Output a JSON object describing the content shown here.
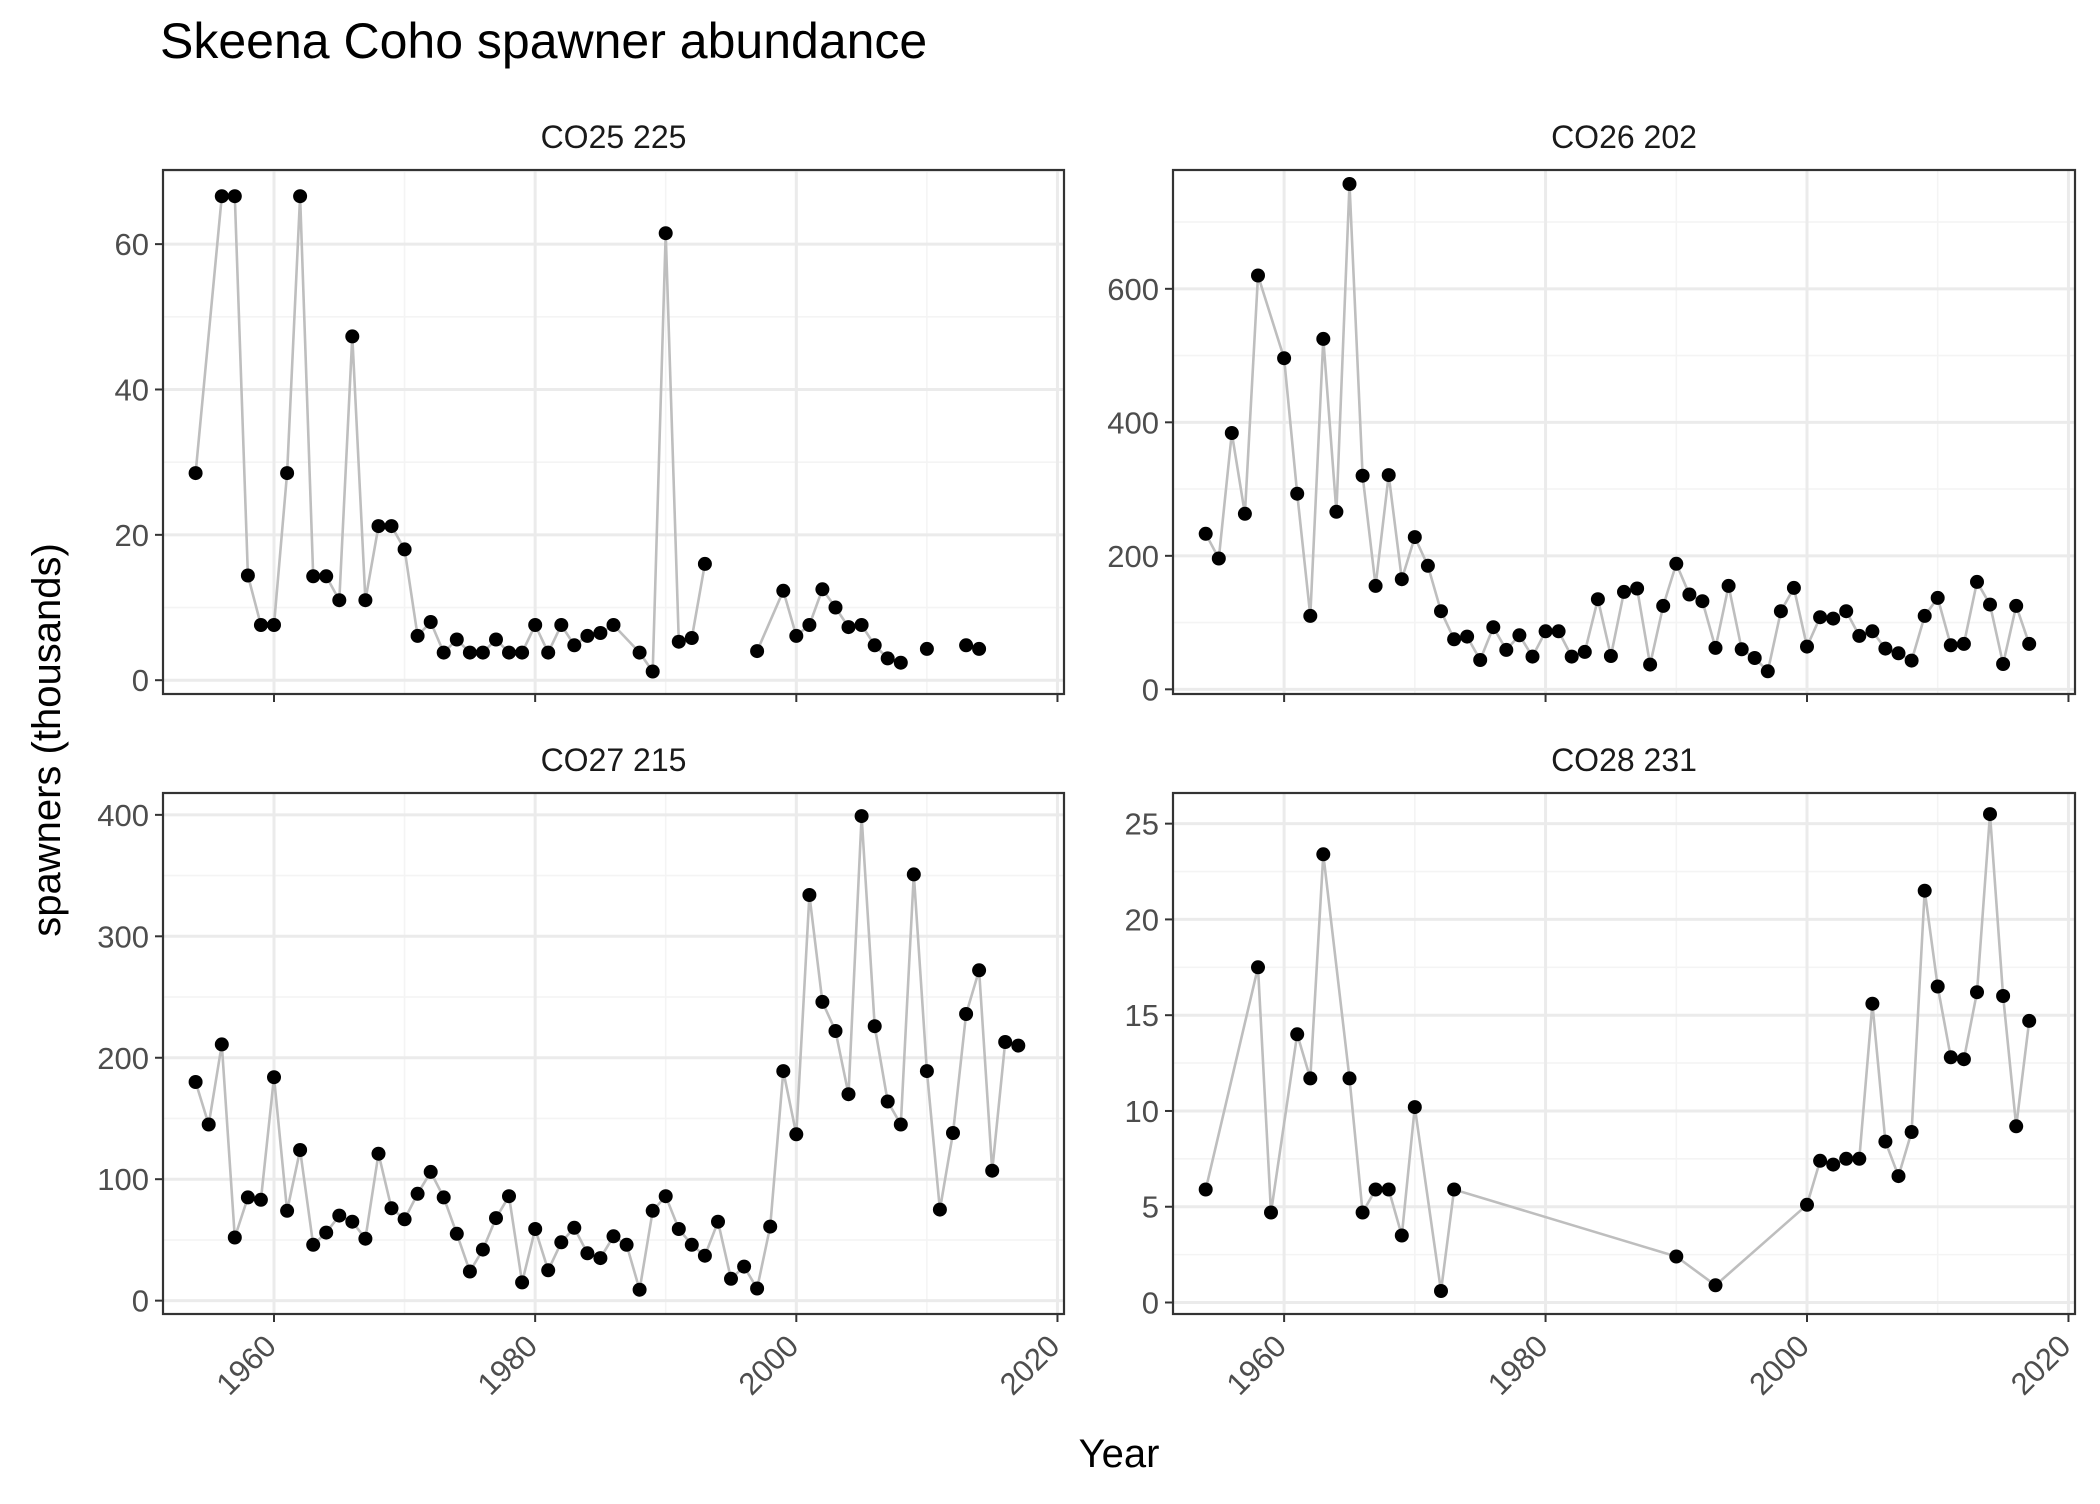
{
  "title": "Skeena Coho spawner abundance",
  "xlabel": "Year",
  "ylabel": "spawners (thousands)",
  "colors": {
    "line": "#bebebe",
    "point": "#000000",
    "grid_major": "#ebebeb",
    "grid_minor": "#f4f4f4",
    "panel_border": "#333333",
    "tick_text": "#4d4d4d",
    "text": "#1a1a1a"
  },
  "chart_data": [
    {
      "type": "line",
      "panel_title": "CO25 225",
      "xlim": [
        1951.5,
        2020.5
      ],
      "ylim": [
        -1.9,
        70.2
      ],
      "x_ticks": [
        1960,
        1980,
        2000,
        2020
      ],
      "y_ticks": [
        0,
        20,
        40,
        60
      ],
      "grid": true,
      "segments": [
        [
          {
            "x": 1954,
            "y": 28.5
          },
          {
            "x": 1956,
            "y": 66.6
          },
          {
            "x": 1957,
            "y": 66.6
          },
          {
            "x": 1958,
            "y": 14.4
          },
          {
            "x": 1959,
            "y": 7.6
          },
          {
            "x": 1960,
            "y": 7.6
          },
          {
            "x": 1961,
            "y": 28.5
          },
          {
            "x": 1962,
            "y": 66.6
          },
          {
            "x": 1963,
            "y": 14.3
          },
          {
            "x": 1964,
            "y": 14.3
          },
          {
            "x": 1965,
            "y": 11.0
          },
          {
            "x": 1966,
            "y": 47.3
          },
          {
            "x": 1967,
            "y": 11.0
          },
          {
            "x": 1968,
            "y": 21.2
          },
          {
            "x": 1969,
            "y": 21.2
          },
          {
            "x": 1970,
            "y": 18.0
          },
          {
            "x": 1971,
            "y": 6.1
          },
          {
            "x": 1972,
            "y": 8.0
          },
          {
            "x": 1973,
            "y": 3.8
          },
          {
            "x": 1974,
            "y": 5.6
          },
          {
            "x": 1975,
            "y": 3.8
          },
          {
            "x": 1976,
            "y": 3.8
          },
          {
            "x": 1977,
            "y": 5.6
          },
          {
            "x": 1978,
            "y": 3.8
          },
          {
            "x": 1979,
            "y": 3.8
          },
          {
            "x": 1980,
            "y": 7.6
          },
          {
            "x": 1981,
            "y": 3.8
          },
          {
            "x": 1982,
            "y": 7.6
          },
          {
            "x": 1983,
            "y": 4.8
          },
          {
            "x": 1984,
            "y": 6.1
          },
          {
            "x": 1985,
            "y": 6.5
          },
          {
            "x": 1986,
            "y": 7.6
          },
          {
            "x": 1988,
            "y": 3.8
          },
          {
            "x": 1989,
            "y": 1.2
          },
          {
            "x": 1990,
            "y": 61.5
          },
          {
            "x": 1991,
            "y": 5.3
          },
          {
            "x": 1992,
            "y": 5.8
          },
          {
            "x": 1993,
            "y": 16.0
          }
        ],
        [
          {
            "x": 1997,
            "y": 4.0
          },
          {
            "x": 1999,
            "y": 12.3
          },
          {
            "x": 2000,
            "y": 6.1
          },
          {
            "x": 2001,
            "y": 7.6
          },
          {
            "x": 2002,
            "y": 12.5
          },
          {
            "x": 2003,
            "y": 10.0
          },
          {
            "x": 2004,
            "y": 7.3
          },
          {
            "x": 2005,
            "y": 7.6
          },
          {
            "x": 2006,
            "y": 4.8
          },
          {
            "x": 2007,
            "y": 3.0
          },
          {
            "x": 2008,
            "y": 2.4
          }
        ],
        [
          {
            "x": 2010,
            "y": 4.3
          }
        ],
        [
          {
            "x": 2013,
            "y": 4.8
          },
          {
            "x": 2014,
            "y": 4.3
          }
        ]
      ]
    },
    {
      "type": "line",
      "panel_title": "CO26 202",
      "xlim": [
        1951.5,
        2020.5
      ],
      "ylim": [
        -7,
        778
      ],
      "x_ticks": [
        1960,
        1980,
        2000,
        2020
      ],
      "y_ticks": [
        0,
        200,
        400,
        600
      ],
      "grid": true,
      "segments": [
        [
          {
            "x": 1954,
            "y": 233
          },
          {
            "x": 1955,
            "y": 196
          },
          {
            "x": 1956,
            "y": 384
          },
          {
            "x": 1957,
            "y": 263
          },
          {
            "x": 1958,
            "y": 620
          },
          {
            "x": 1960,
            "y": 496
          },
          {
            "x": 1961,
            "y": 293
          },
          {
            "x": 1962,
            "y": 110
          },
          {
            "x": 1963,
            "y": 525
          },
          {
            "x": 1964,
            "y": 266
          },
          {
            "x": 1965,
            "y": 757
          },
          {
            "x": 1966,
            "y": 320
          },
          {
            "x": 1967,
            "y": 155
          },
          {
            "x": 1968,
            "y": 321
          },
          {
            "x": 1969,
            "y": 165
          },
          {
            "x": 1970,
            "y": 228
          },
          {
            "x": 1971,
            "y": 185
          },
          {
            "x": 1972,
            "y": 117
          },
          {
            "x": 1973,
            "y": 75
          },
          {
            "x": 1974,
            "y": 79
          },
          {
            "x": 1975,
            "y": 44
          },
          {
            "x": 1976,
            "y": 93
          },
          {
            "x": 1977,
            "y": 59
          },
          {
            "x": 1978,
            "y": 81
          },
          {
            "x": 1979,
            "y": 49
          },
          {
            "x": 1980,
            "y": 87
          },
          {
            "x": 1981,
            "y": 87
          },
          {
            "x": 1982,
            "y": 49
          },
          {
            "x": 1983,
            "y": 56
          },
          {
            "x": 1984,
            "y": 135
          },
          {
            "x": 1985,
            "y": 50
          },
          {
            "x": 1986,
            "y": 146
          },
          {
            "x": 1987,
            "y": 151
          },
          {
            "x": 1988,
            "y": 37
          },
          {
            "x": 1989,
            "y": 125
          },
          {
            "x": 1990,
            "y": 188
          },
          {
            "x": 1991,
            "y": 142
          },
          {
            "x": 1992,
            "y": 132
          },
          {
            "x": 1993,
            "y": 62
          },
          {
            "x": 1994,
            "y": 155
          },
          {
            "x": 1995,
            "y": 60
          },
          {
            "x": 1996,
            "y": 47
          },
          {
            "x": 1997,
            "y": 27
          },
          {
            "x": 1998,
            "y": 117
          },
          {
            "x": 1999,
            "y": 152
          },
          {
            "x": 2000,
            "y": 64
          },
          {
            "x": 2001,
            "y": 108
          },
          {
            "x": 2002,
            "y": 106
          },
          {
            "x": 2003,
            "y": 117
          },
          {
            "x": 2004,
            "y": 80
          },
          {
            "x": 2005,
            "y": 87
          },
          {
            "x": 2006,
            "y": 61
          },
          {
            "x": 2007,
            "y": 54
          },
          {
            "x": 2008,
            "y": 43
          },
          {
            "x": 2009,
            "y": 110
          },
          {
            "x": 2010,
            "y": 137
          },
          {
            "x": 2011,
            "y": 66
          },
          {
            "x": 2012,
            "y": 68
          },
          {
            "x": 2013,
            "y": 161
          },
          {
            "x": 2014,
            "y": 127
          },
          {
            "x": 2015,
            "y": 38
          },
          {
            "x": 2016,
            "y": 125
          },
          {
            "x": 2017,
            "y": 68
          }
        ]
      ]
    },
    {
      "type": "line",
      "panel_title": "CO27 215",
      "xlim": [
        1951.5,
        2020.5
      ],
      "ylim": [
        -11,
        418
      ],
      "x_ticks": [
        1960,
        1980,
        2000,
        2020
      ],
      "y_ticks": [
        0,
        100,
        200,
        300,
        400
      ],
      "grid": true,
      "segments": [
        [
          {
            "x": 1954,
            "y": 180
          },
          {
            "x": 1955,
            "y": 145
          },
          {
            "x": 1956,
            "y": 211
          },
          {
            "x": 1957,
            "y": 52
          },
          {
            "x": 1958,
            "y": 85
          },
          {
            "x": 1959,
            "y": 83
          },
          {
            "x": 1960,
            "y": 184
          },
          {
            "x": 1961,
            "y": 74
          },
          {
            "x": 1962,
            "y": 124
          },
          {
            "x": 1963,
            "y": 46
          },
          {
            "x": 1964,
            "y": 56
          },
          {
            "x": 1965,
            "y": 70
          },
          {
            "x": 1966,
            "y": 65
          },
          {
            "x": 1967,
            "y": 51
          },
          {
            "x": 1968,
            "y": 121
          },
          {
            "x": 1969,
            "y": 76
          },
          {
            "x": 1970,
            "y": 67
          },
          {
            "x": 1971,
            "y": 88
          },
          {
            "x": 1972,
            "y": 106
          },
          {
            "x": 1973,
            "y": 85
          },
          {
            "x": 1974,
            "y": 55
          },
          {
            "x": 1975,
            "y": 24
          },
          {
            "x": 1976,
            "y": 42
          },
          {
            "x": 1977,
            "y": 68
          },
          {
            "x": 1978,
            "y": 86
          },
          {
            "x": 1979,
            "y": 15
          },
          {
            "x": 1980,
            "y": 59
          },
          {
            "x": 1981,
            "y": 25
          },
          {
            "x": 1982,
            "y": 48
          },
          {
            "x": 1983,
            "y": 60
          },
          {
            "x": 1984,
            "y": 39
          },
          {
            "x": 1985,
            "y": 35
          },
          {
            "x": 1986,
            "y": 53
          },
          {
            "x": 1987,
            "y": 46
          },
          {
            "x": 1988,
            "y": 9
          },
          {
            "x": 1989,
            "y": 74
          },
          {
            "x": 1990,
            "y": 86
          },
          {
            "x": 1991,
            "y": 59
          },
          {
            "x": 1992,
            "y": 46
          },
          {
            "x": 1993,
            "y": 37
          },
          {
            "x": 1994,
            "y": 65
          },
          {
            "x": 1995,
            "y": 18
          },
          {
            "x": 1996,
            "y": 28
          },
          {
            "x": 1997,
            "y": 10
          },
          {
            "x": 1998,
            "y": 61
          },
          {
            "x": 1999,
            "y": 189
          },
          {
            "x": 2000,
            "y": 137
          },
          {
            "x": 2001,
            "y": 334
          },
          {
            "x": 2002,
            "y": 246
          },
          {
            "x": 2003,
            "y": 222
          },
          {
            "x": 2004,
            "y": 170
          },
          {
            "x": 2005,
            "y": 399
          },
          {
            "x": 2006,
            "y": 226
          },
          {
            "x": 2007,
            "y": 164
          },
          {
            "x": 2008,
            "y": 145
          },
          {
            "x": 2009,
            "y": 351
          },
          {
            "x": 2010,
            "y": 189
          },
          {
            "x": 2011,
            "y": 75
          },
          {
            "x": 2012,
            "y": 138
          },
          {
            "x": 2013,
            "y": 236
          },
          {
            "x": 2014,
            "y": 272
          },
          {
            "x": 2015,
            "y": 107
          },
          {
            "x": 2016,
            "y": 213
          },
          {
            "x": 2017,
            "y": 210
          }
        ]
      ]
    },
    {
      "type": "line",
      "panel_title": "CO28 231",
      "xlim": [
        1951.5,
        2020.5
      ],
      "ylim": [
        -0.6,
        26.6
      ],
      "x_ticks": [
        1960,
        1980,
        2000,
        2020
      ],
      "y_ticks": [
        0,
        5,
        10,
        15,
        20,
        25
      ],
      "grid": true,
      "segments": [
        [
          {
            "x": 1954,
            "y": 5.9
          },
          {
            "x": 1958,
            "y": 17.5
          },
          {
            "x": 1959,
            "y": 4.7
          },
          {
            "x": 1961,
            "y": 14.0
          },
          {
            "x": 1962,
            "y": 11.7
          },
          {
            "x": 1963,
            "y": 23.4
          },
          {
            "x": 1965,
            "y": 11.7
          },
          {
            "x": 1966,
            "y": 4.7
          },
          {
            "x": 1967,
            "y": 5.9
          },
          {
            "x": 1968,
            "y": 5.9
          },
          {
            "x": 1969,
            "y": 3.5
          },
          {
            "x": 1970,
            "y": 10.2
          },
          {
            "x": 1972,
            "y": 0.6
          },
          {
            "x": 1973,
            "y": 5.9
          },
          {
            "x": 1990,
            "y": 2.4
          },
          {
            "x": 1993,
            "y": 0.9
          },
          {
            "x": 2000,
            "y": 5.1
          },
          {
            "x": 2001,
            "y": 7.4
          },
          {
            "x": 2002,
            "y": 7.2
          },
          {
            "x": 2003,
            "y": 7.5
          },
          {
            "x": 2004,
            "y": 7.5
          },
          {
            "x": 2005,
            "y": 15.6
          },
          {
            "x": 2006,
            "y": 8.4
          },
          {
            "x": 2007,
            "y": 6.6
          },
          {
            "x": 2008,
            "y": 8.9
          },
          {
            "x": 2009,
            "y": 21.5
          },
          {
            "x": 2010,
            "y": 16.5
          },
          {
            "x": 2011,
            "y": 12.8
          },
          {
            "x": 2012,
            "y": 12.7
          },
          {
            "x": 2013,
            "y": 16.2
          },
          {
            "x": 2014,
            "y": 25.5
          },
          {
            "x": 2015,
            "y": 16.0
          },
          {
            "x": 2016,
            "y": 9.2
          },
          {
            "x": 2017,
            "y": 14.7
          }
        ]
      ]
    }
  ]
}
